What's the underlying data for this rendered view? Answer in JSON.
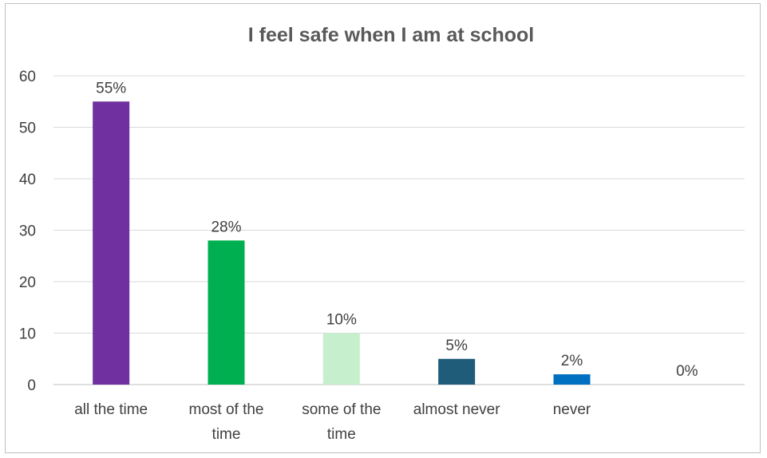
{
  "chart_data": {
    "type": "bar",
    "title": "I feel safe when I am at school",
    "xlabel": "",
    "ylabel": "",
    "ylim": [
      0,
      60
    ],
    "yticks": [
      0,
      10,
      20,
      30,
      40,
      50,
      60
    ],
    "grid": true,
    "legend": "none",
    "categories": [
      [
        "all the time"
      ],
      [
        "most of the",
        "time"
      ],
      [
        "some of the",
        "time"
      ],
      [
        "almost never"
      ],
      [
        "never"
      ],
      [
        ""
      ]
    ],
    "values": [
      55,
      28,
      10,
      5,
      2,
      0
    ],
    "data_labels": [
      "55%",
      "28%",
      "10%",
      "5%",
      "2%",
      "0%"
    ],
    "colors": [
      "#7030a0",
      "#00b050",
      "#c6efce",
      "#1f5c7a",
      "#0070c0",
      "#ffffff"
    ]
  }
}
